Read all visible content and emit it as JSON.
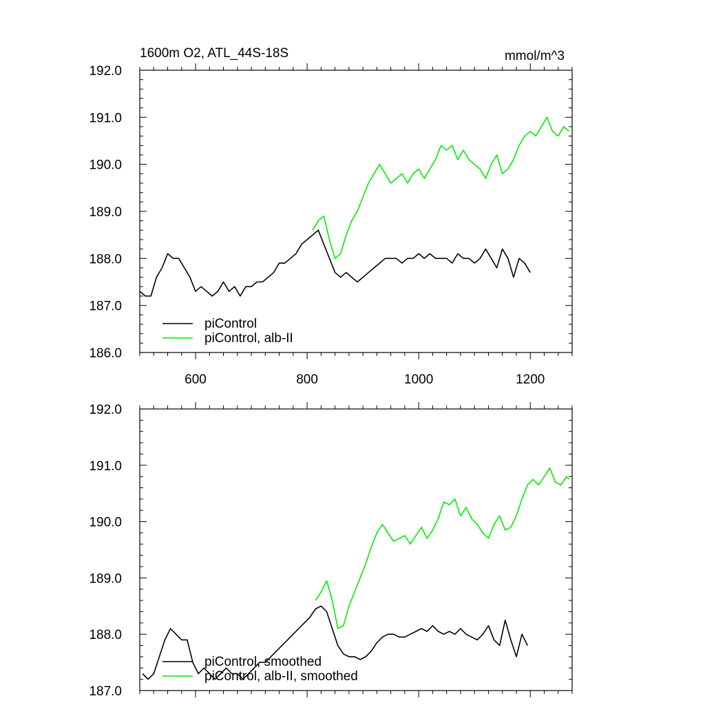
{
  "header": {
    "title": "1600m O2, ATL_44S-18S",
    "units": "mmol/m^3"
  },
  "colors": {
    "control": "#000000",
    "alb": "#00ee00",
    "frame": "#000000"
  },
  "chart_data": [
    {
      "type": "line",
      "title": "1600m O2, ATL_44S-18S",
      "units_label": "mmol/m^3",
      "xlim": [
        500,
        1275
      ],
      "ylim": [
        186.0,
        192.0
      ],
      "xticks": [
        600,
        800,
        1000,
        1200
      ],
      "xtick_labels": [
        "600",
        "800",
        "1000",
        "1200"
      ],
      "yticks": [
        186.0,
        187.0,
        188.0,
        189.0,
        190.0,
        191.0,
        192.0
      ],
      "ytick_labels": [
        "186.0",
        "187.0",
        "188.0",
        "189.0",
        "190.0",
        "191.0",
        "192.0"
      ],
      "grid": false,
      "legend_position": "bottom-left",
      "series": [
        {
          "name": "piControl",
          "color": "#000000",
          "x": [
            500,
            510,
            520,
            530,
            540,
            550,
            560,
            570,
            580,
            590,
            600,
            610,
            620,
            630,
            640,
            650,
            660,
            670,
            680,
            690,
            700,
            710,
            720,
            730,
            740,
            750,
            760,
            770,
            780,
            790,
            800,
            810,
            820,
            830,
            840,
            850,
            860,
            870,
            880,
            890,
            900,
            910,
            920,
            930,
            940,
            950,
            960,
            970,
            980,
            990,
            1000,
            1010,
            1020,
            1030,
            1040,
            1050,
            1060,
            1070,
            1080,
            1090,
            1100,
            1110,
            1120,
            1130,
            1140,
            1150,
            1160,
            1170,
            1180,
            1190,
            1200
          ],
          "values": [
            187.3,
            187.2,
            187.2,
            187.6,
            187.8,
            188.1,
            188.0,
            188.0,
            187.8,
            187.6,
            187.3,
            187.4,
            187.3,
            187.2,
            187.3,
            187.5,
            187.3,
            187.4,
            187.2,
            187.4,
            187.4,
            187.5,
            187.5,
            187.6,
            187.7,
            187.9,
            187.9,
            188.0,
            188.1,
            188.3,
            188.4,
            188.5,
            188.6,
            188.3,
            188.0,
            187.7,
            187.6,
            187.7,
            187.6,
            187.5,
            187.6,
            187.7,
            187.8,
            187.9,
            188.0,
            188.0,
            188.0,
            187.9,
            188.0,
            188.0,
            188.1,
            188.0,
            188.1,
            188.0,
            188.0,
            188.0,
            187.9,
            188.1,
            188.0,
            188.0,
            187.9,
            188.0,
            188.2,
            188.0,
            187.8,
            188.2,
            188.0,
            187.6,
            188.0,
            187.9,
            187.7
          ]
        },
        {
          "name": "piControl, alb-II",
          "color": "#00ee00",
          "x": [
            810,
            820,
            830,
            840,
            850,
            860,
            870,
            880,
            890,
            900,
            910,
            920,
            930,
            940,
            950,
            960,
            970,
            980,
            990,
            1000,
            1010,
            1020,
            1030,
            1040,
            1050,
            1060,
            1070,
            1080,
            1090,
            1100,
            1110,
            1120,
            1130,
            1140,
            1150,
            1160,
            1170,
            1180,
            1190,
            1200,
            1210,
            1220,
            1230,
            1240,
            1250,
            1260,
            1270
          ],
          "values": [
            188.6,
            188.8,
            188.9,
            188.4,
            188.0,
            188.1,
            188.5,
            188.8,
            189.0,
            189.3,
            189.6,
            189.8,
            190.0,
            189.8,
            189.6,
            189.7,
            189.8,
            189.6,
            189.8,
            189.9,
            189.7,
            189.9,
            190.1,
            190.4,
            190.3,
            190.4,
            190.1,
            190.3,
            190.1,
            190.0,
            189.9,
            189.7,
            190.0,
            190.2,
            189.8,
            189.9,
            190.1,
            190.4,
            190.6,
            190.7,
            190.6,
            190.8,
            191.0,
            190.7,
            190.6,
            190.8,
            190.7
          ]
        }
      ]
    },
    {
      "type": "line",
      "title": "",
      "xlim": [
        500,
        1275
      ],
      "ylim": [
        187.0,
        192.0
      ],
      "xticks": [
        600,
        800,
        1000,
        1200
      ],
      "yticks": [
        187.0,
        188.0,
        189.0,
        190.0,
        191.0,
        192.0
      ],
      "ytick_labels": [
        "187.0",
        "188.0",
        "189.0",
        "190.0",
        "191.0",
        "192.0"
      ],
      "grid": false,
      "legend_position": "bottom-left",
      "series": [
        {
          "name": "piControl, smoothed",
          "color": "#000000",
          "x": [
            505,
            515,
            525,
            535,
            545,
            555,
            565,
            575,
            585,
            595,
            605,
            615,
            625,
            635,
            645,
            655,
            665,
            675,
            685,
            695,
            705,
            715,
            725,
            735,
            745,
            755,
            765,
            775,
            785,
            795,
            805,
            815,
            825,
            835,
            845,
            855,
            865,
            875,
            885,
            895,
            905,
            915,
            925,
            935,
            945,
            955,
            965,
            975,
            985,
            995,
            1005,
            1015,
            1025,
            1035,
            1045,
            1055,
            1065,
            1075,
            1085,
            1095,
            1105,
            1115,
            1125,
            1135,
            1145,
            1155,
            1165,
            1175,
            1185,
            1195
          ],
          "values": [
            187.3,
            187.2,
            187.3,
            187.6,
            187.9,
            188.1,
            188.0,
            187.9,
            187.9,
            187.5,
            187.3,
            187.4,
            187.3,
            187.2,
            187.3,
            187.4,
            187.3,
            187.3,
            187.2,
            187.3,
            187.4,
            187.5,
            187.5,
            187.6,
            187.7,
            187.8,
            187.9,
            188.0,
            188.1,
            188.2,
            188.3,
            188.45,
            188.5,
            188.4,
            188.1,
            187.8,
            187.65,
            187.6,
            187.6,
            187.55,
            187.6,
            187.7,
            187.85,
            187.95,
            188.0,
            188.0,
            187.95,
            187.95,
            188.0,
            188.05,
            188.1,
            188.05,
            188.15,
            188.05,
            188.0,
            188.05,
            188.0,
            188.1,
            188.0,
            187.95,
            187.9,
            188.0,
            188.15,
            187.9,
            187.8,
            188.25,
            187.9,
            187.6,
            188.0,
            187.8
          ]
        },
        {
          "name": "piControl, alb-II, smoothed",
          "color": "#00ee00",
          "x": [
            815,
            825,
            835,
            845,
            855,
            865,
            875,
            885,
            895,
            905,
            915,
            925,
            935,
            945,
            955,
            965,
            975,
            985,
            995,
            1005,
            1015,
            1025,
            1035,
            1045,
            1055,
            1065,
            1075,
            1085,
            1095,
            1105,
            1115,
            1125,
            1135,
            1145,
            1155,
            1165,
            1175,
            1185,
            1195,
            1205,
            1215,
            1225,
            1235,
            1245,
            1255,
            1265,
            1270
          ],
          "values": [
            188.6,
            188.75,
            188.95,
            188.6,
            188.1,
            188.15,
            188.5,
            188.75,
            189.0,
            189.25,
            189.55,
            189.8,
            189.95,
            189.8,
            189.65,
            189.7,
            189.75,
            189.6,
            189.75,
            189.9,
            189.7,
            189.85,
            190.05,
            190.35,
            190.3,
            190.4,
            190.1,
            190.25,
            190.05,
            189.95,
            189.8,
            189.7,
            189.95,
            190.1,
            189.85,
            189.9,
            190.1,
            190.4,
            190.65,
            190.75,
            190.65,
            190.8,
            190.95,
            190.7,
            190.65,
            190.8,
            190.75
          ]
        }
      ]
    }
  ]
}
